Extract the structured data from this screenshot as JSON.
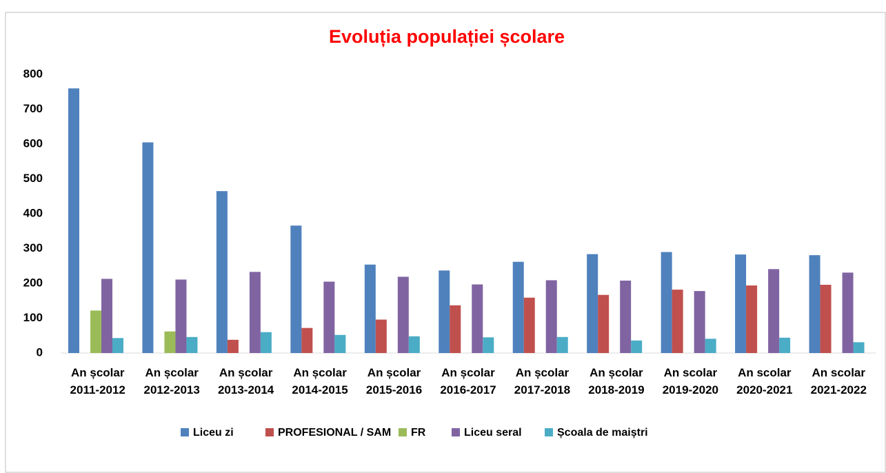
{
  "chart_data": {
    "type": "bar",
    "title": "Evoluția populației școlare",
    "categories": [
      "An școlar 2011-2012",
      "An școlar 2012-2013",
      "An școlar 2013-2014",
      "An școlar 2014-2015",
      "An școlar 2015-2016",
      "An școlar 2016-2017",
      "An școlar 2017-2018",
      "An școlar 2018-2019",
      "An scolar 2019-2020",
      "An scolar 2020-2021",
      "An scolar 2021-2022"
    ],
    "series": [
      {
        "name": "Liceu zi",
        "color": "#4f81bd",
        "values": [
          760,
          605,
          465,
          366,
          254,
          237,
          262,
          284,
          290,
          283,
          281
        ]
      },
      {
        "name": "PROFESIONAL / SAM",
        "color": "#c0504d",
        "values": [
          null,
          null,
          38,
          72,
          96,
          137,
          159,
          167,
          182,
          194,
          196
        ]
      },
      {
        "name": "FR",
        "color": "#9bbb59",
        "values": [
          122,
          62,
          null,
          null,
          null,
          null,
          null,
          null,
          null,
          null,
          null
        ]
      },
      {
        "name": "Liceu seral",
        "color": "#8064a2",
        "values": [
          213,
          211,
          233,
          205,
          219,
          197,
          209,
          208,
          178,
          241,
          231
        ]
      },
      {
        "name": "Școala de maiștri",
        "color": "#4bacc6",
        "values": [
          43,
          46,
          60,
          52,
          48,
          45,
          46,
          36,
          41,
          44,
          31
        ]
      }
    ],
    "ylim": [
      0,
      800
    ],
    "yticks": [
      0,
      100,
      200,
      300,
      400,
      500,
      600,
      700,
      800
    ],
    "grid": false,
    "legend": "bottom"
  }
}
